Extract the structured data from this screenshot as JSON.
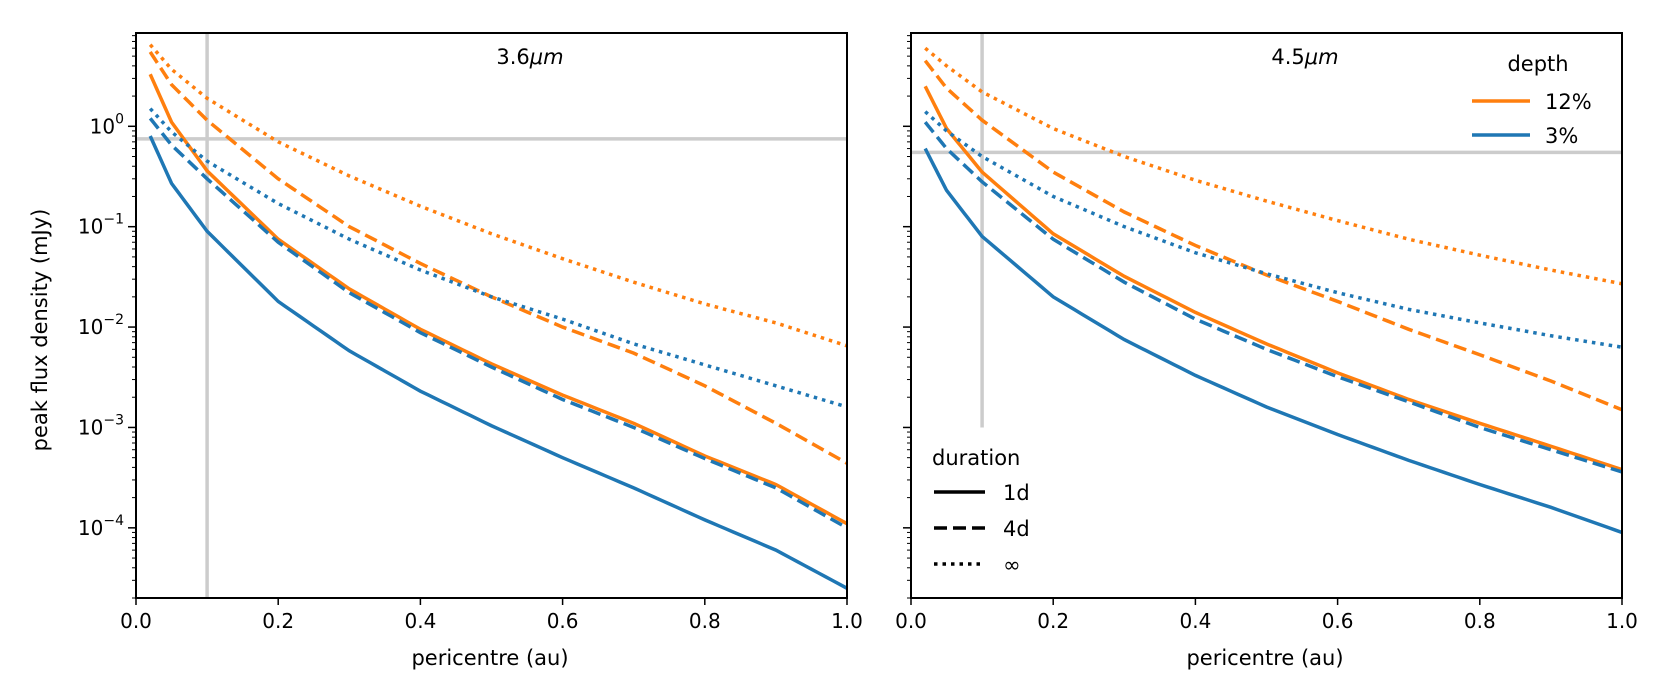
{
  "chart_data": [
    {
      "type": "line",
      "title": "3.6μm",
      "title_main": "3.6",
      "title_unit": "μm",
      "xlabel": "pericentre (au)",
      "ylabel": "peak flux density (mJy)",
      "xlim": [
        0.0,
        1.0
      ],
      "ylim": [
        2e-05,
        8.5
      ],
      "yscale": "log",
      "xticks": [
        "0.0",
        "0.2",
        "0.4",
        "0.6",
        "0.8",
        "1.0"
      ],
      "yticks": [
        {
          "base": "10",
          "exp": "0"
        },
        {
          "base": "10",
          "exp": "−1"
        },
        {
          "base": "10",
          "exp": "−2"
        },
        {
          "base": "10",
          "exp": "−3"
        },
        {
          "base": "10",
          "exp": "−4"
        }
      ],
      "reference_lines": {
        "vertical_x": 0.1,
        "horizontal_y": 0.75
      },
      "series": [
        {
          "depth": "12%",
          "duration": "1d",
          "x": [
            0.02,
            0.05,
            0.1,
            0.2,
            0.3,
            0.4,
            0.5,
            0.6,
            0.7,
            0.8,
            0.9,
            1.0
          ],
          "values": [
            3.3,
            1.1,
            0.36,
            0.075,
            0.024,
            0.0095,
            0.0043,
            0.0021,
            0.0011,
            0.00052,
            0.00027,
            0.00011
          ]
        },
        {
          "depth": "12%",
          "duration": "4d",
          "x": [
            0.02,
            0.05,
            0.1,
            0.2,
            0.3,
            0.4,
            0.5,
            0.6,
            0.7,
            0.8,
            0.9,
            1.0
          ],
          "values": [
            5.5,
            2.6,
            1.15,
            0.3,
            0.1,
            0.043,
            0.02,
            0.01,
            0.0055,
            0.0026,
            0.0011,
            0.00044
          ]
        },
        {
          "depth": "12%",
          "duration": "∞",
          "x": [
            0.02,
            0.05,
            0.1,
            0.2,
            0.3,
            0.4,
            0.5,
            0.6,
            0.7,
            0.8,
            0.9,
            1.0
          ],
          "values": [
            6.5,
            3.7,
            1.9,
            0.7,
            0.32,
            0.16,
            0.085,
            0.048,
            0.028,
            0.017,
            0.011,
            0.0065
          ]
        },
        {
          "depth": "3%",
          "duration": "1d",
          "x": [
            0.02,
            0.05,
            0.1,
            0.2,
            0.3,
            0.4,
            0.5,
            0.6,
            0.7,
            0.8,
            0.9,
            1.0
          ],
          "values": [
            0.8,
            0.27,
            0.09,
            0.018,
            0.0058,
            0.0023,
            0.00104,
            0.0005,
            0.00025,
            0.00012,
            6e-05,
            2.5e-05
          ]
        },
        {
          "depth": "3%",
          "duration": "4d",
          "x": [
            0.02,
            0.05,
            0.1,
            0.2,
            0.3,
            0.4,
            0.5,
            0.6,
            0.7,
            0.8,
            0.9,
            1.0
          ],
          "values": [
            1.2,
            0.65,
            0.3,
            0.07,
            0.022,
            0.0088,
            0.004,
            0.0019,
            0.001,
            0.00049,
            0.00025,
            0.0001
          ]
        },
        {
          "depth": "3%",
          "duration": "∞",
          "x": [
            0.02,
            0.05,
            0.1,
            0.2,
            0.3,
            0.4,
            0.5,
            0.6,
            0.7,
            0.8,
            0.9,
            1.0
          ],
          "values": [
            1.5,
            0.88,
            0.45,
            0.17,
            0.075,
            0.037,
            0.02,
            0.012,
            0.0068,
            0.0042,
            0.0026,
            0.0016
          ]
        }
      ]
    },
    {
      "type": "line",
      "title": "4.5μm",
      "title_main": "4.5",
      "title_unit": "μm",
      "xlabel": "pericentre (au)",
      "ylabel": "",
      "xlim": [
        0.0,
        1.0
      ],
      "ylim": [
        2e-05,
        8.5
      ],
      "yscale": "log",
      "xticks": [
        "0.0",
        "0.2",
        "0.4",
        "0.6",
        "0.8",
        "1.0"
      ],
      "reference_lines": {
        "vertical_x": 0.1,
        "horizontal_y": 0.55,
        "vertical_ymin": 0.001
      },
      "series": [
        {
          "depth": "12%",
          "duration": "1d",
          "x": [
            0.02,
            0.05,
            0.1,
            0.2,
            0.3,
            0.4,
            0.5,
            0.6,
            0.7,
            0.8,
            0.9,
            1.0
          ],
          "values": [
            2.5,
            0.95,
            0.35,
            0.085,
            0.032,
            0.014,
            0.0068,
            0.0035,
            0.0019,
            0.0011,
            0.00065,
            0.00038
          ]
        },
        {
          "depth": "12%",
          "duration": "4d",
          "x": [
            0.02,
            0.05,
            0.1,
            0.2,
            0.3,
            0.4,
            0.5,
            0.6,
            0.7,
            0.8,
            0.9,
            1.0
          ],
          "values": [
            4.5,
            2.4,
            1.15,
            0.35,
            0.14,
            0.065,
            0.033,
            0.018,
            0.0095,
            0.0053,
            0.0029,
            0.0015
          ]
        },
        {
          "depth": "12%",
          "duration": "∞",
          "x": [
            0.02,
            0.05,
            0.1,
            0.2,
            0.3,
            0.4,
            0.5,
            0.6,
            0.7,
            0.8,
            0.9,
            1.0
          ],
          "values": [
            6.0,
            4.0,
            2.2,
            0.95,
            0.5,
            0.29,
            0.18,
            0.115,
            0.075,
            0.052,
            0.037,
            0.027
          ]
        },
        {
          "depth": "3%",
          "duration": "1d",
          "x": [
            0.02,
            0.05,
            0.1,
            0.2,
            0.3,
            0.4,
            0.5,
            0.6,
            0.7,
            0.8,
            0.9,
            1.0
          ],
          "values": [
            0.6,
            0.23,
            0.08,
            0.02,
            0.0075,
            0.0033,
            0.0016,
            0.00085,
            0.00047,
            0.00027,
            0.00016,
            9e-05
          ]
        },
        {
          "depth": "3%",
          "duration": "4d",
          "x": [
            0.02,
            0.05,
            0.1,
            0.2,
            0.3,
            0.4,
            0.5,
            0.6,
            0.7,
            0.8,
            0.9,
            1.0
          ],
          "values": [
            1.1,
            0.6,
            0.28,
            0.075,
            0.028,
            0.012,
            0.006,
            0.0032,
            0.0018,
            0.001,
            0.0006,
            0.00036
          ]
        },
        {
          "depth": "3%",
          "duration": "∞",
          "x": [
            0.02,
            0.05,
            0.1,
            0.2,
            0.3,
            0.4,
            0.5,
            0.6,
            0.7,
            0.8,
            0.9,
            1.0
          ],
          "values": [
            1.4,
            0.9,
            0.5,
            0.2,
            0.1,
            0.055,
            0.034,
            0.022,
            0.015,
            0.011,
            0.0082,
            0.0063
          ]
        }
      ]
    }
  ],
  "legend_depth": {
    "title": "depth",
    "placement": "top-right of right panel",
    "items": [
      {
        "label": "12%",
        "color": "#ff7f0e"
      },
      {
        "label": "3%",
        "color": "#1f77b4"
      }
    ]
  },
  "legend_duration": {
    "title": "duration",
    "placement": "bottom-left of right panel",
    "items": [
      {
        "label": "1d",
        "dash": "solid"
      },
      {
        "label": "4d",
        "dash": "dashed"
      },
      {
        "label": "∞",
        "dash": "dotted"
      }
    ]
  },
  "colors": {
    "12%": "#ff7f0e",
    "3%": "#1f77b4",
    "reference": "#cccccc"
  }
}
